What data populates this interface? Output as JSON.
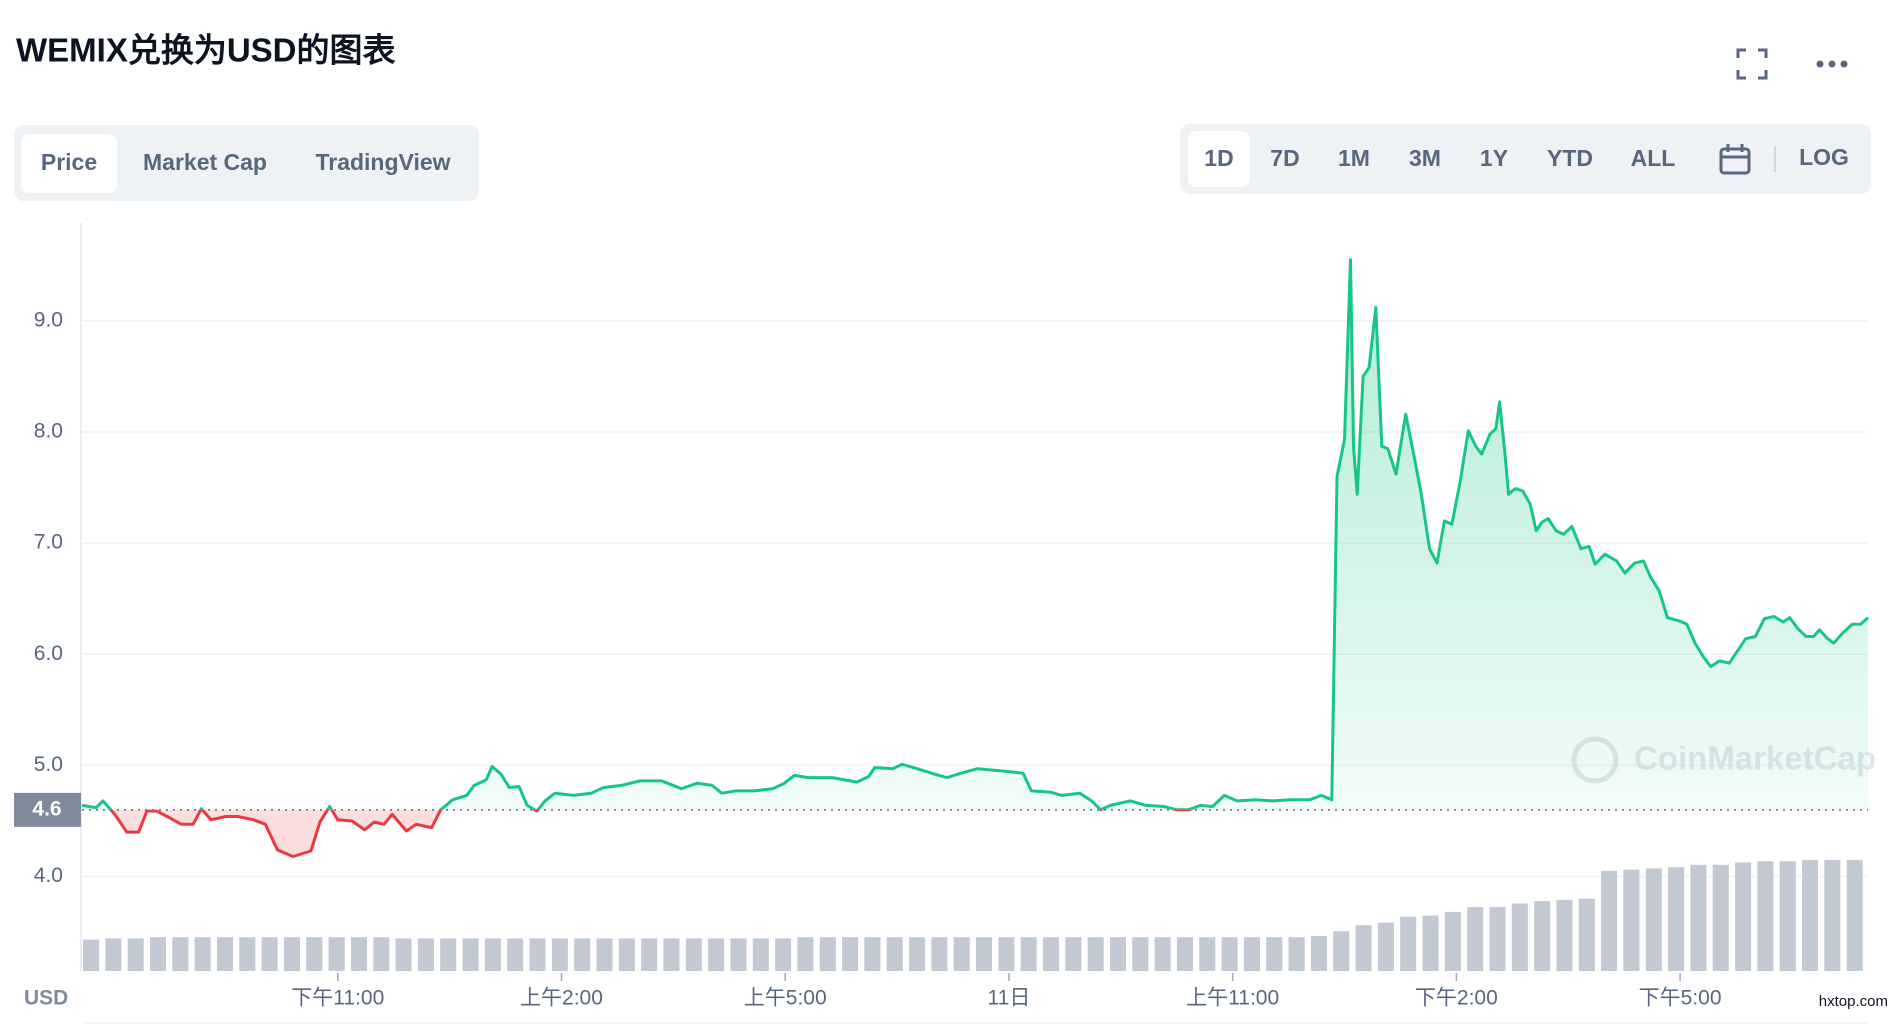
{
  "header": {
    "title": "WEMIX兑换为USD的图表"
  },
  "tabs": {
    "items": [
      "Price",
      "Market Cap",
      "TradingView"
    ],
    "active": 0
  },
  "ranges": {
    "items": [
      "1D",
      "7D",
      "1M",
      "3M",
      "1Y",
      "YTD",
      "ALL"
    ],
    "active": 0,
    "log": "LOG"
  },
  "chart_data": {
    "type": "line",
    "y_unit": "USD",
    "color_up": "#16c784",
    "color_down": "#ea3943",
    "reference": 4.6,
    "watermark": "CoinMarketCap",
    "xlim": [
      19.57,
      43.52
    ],
    "xticks": [
      {
        "value": 23,
        "label": "下午11:00"
      },
      {
        "value": 26,
        "label": "上午2:00"
      },
      {
        "value": 29,
        "label": "上午5:00"
      },
      {
        "value": 32,
        "label": "11日"
      },
      {
        "value": 35,
        "label": "上午11:00"
      },
      {
        "value": 38,
        "label": "下午2:00"
      },
      {
        "value": 41,
        "label": "下午5:00"
      }
    ],
    "ylim": [
      3.15,
      9.88
    ],
    "yticks": [
      {
        "value": 4,
        "label": "4.0"
      },
      {
        "value": 5,
        "label": "5.0"
      },
      {
        "value": 6,
        "label": "6.0"
      },
      {
        "value": 7,
        "label": "7.0"
      },
      {
        "value": 8,
        "label": "8.0"
      },
      {
        "value": 9,
        "label": "9.0"
      }
    ],
    "grid": true,
    "x": [
      19.57,
      19.76,
      19.85,
      20.01,
      20.17,
      20.33,
      20.44,
      20.57,
      20.74,
      20.9,
      21.06,
      21.17,
      21.3,
      21.5,
      21.66,
      21.87,
      22.03,
      22.19,
      22.4,
      22.64,
      22.76,
      22.89,
      23.0,
      23.19,
      23.36,
      23.49,
      23.62,
      23.73,
      23.92,
      24.05,
      24.26,
      24.38,
      24.54,
      24.73,
      24.83,
      24.99,
      25.07,
      25.19,
      25.3,
      25.43,
      25.54,
      25.67,
      25.78,
      25.91,
      26.16,
      26.4,
      26.56,
      26.8,
      27.05,
      27.34,
      27.61,
      27.82,
      28.02,
      28.15,
      28.34,
      28.58,
      28.83,
      28.99,
      29.12,
      29.31,
      29.63,
      29.96,
      30.12,
      30.2,
      30.44,
      30.57,
      30.77,
      31.01,
      31.17,
      31.41,
      31.58,
      31.9,
      32.19,
      32.3,
      32.55,
      32.71,
      32.95,
      33.11,
      33.23,
      33.36,
      33.63,
      33.84,
      34.08,
      34.25,
      34.41,
      34.57,
      34.73,
      34.89,
      35.06,
      35.3,
      35.54,
      35.78,
      36.03,
      36.19,
      36.33,
      36.4,
      36.5,
      36.58,
      36.62,
      36.67,
      36.75,
      36.83,
      36.92,
      37.0,
      37.08,
      37.19,
      37.32,
      37.43,
      37.53,
      37.64,
      37.74,
      37.84,
      37.94,
      38.05,
      38.16,
      38.26,
      38.34,
      38.45,
      38.53,
      38.58,
      38.65,
      38.7,
      38.79,
      38.89,
      38.99,
      39.07,
      39.15,
      39.23,
      39.34,
      39.44,
      39.55,
      39.67,
      39.78,
      39.86,
      39.99,
      40.15,
      40.26,
      40.39,
      40.51,
      40.6,
      40.72,
      40.83,
      40.99,
      41.09,
      41.2,
      41.32,
      41.41,
      41.53,
      41.66,
      41.77,
      41.88,
      42.01,
      42.13,
      42.26,
      42.38,
      42.47,
      42.58,
      42.69,
      42.79,
      42.87,
      42.98,
      43.06,
      43.18,
      43.31,
      43.42,
      43.52
    ],
    "values": [
      4.64,
      4.62,
      4.68,
      4.56,
      4.4,
      4.4,
      4.59,
      4.59,
      4.53,
      4.47,
      4.47,
      4.61,
      4.51,
      4.54,
      4.54,
      4.51,
      4.47,
      4.24,
      4.18,
      4.23,
      4.49,
      4.63,
      4.51,
      4.5,
      4.42,
      4.49,
      4.47,
      4.56,
      4.41,
      4.47,
      4.44,
      4.6,
      4.69,
      4.73,
      4.82,
      4.87,
      4.99,
      4.92,
      4.8,
      4.81,
      4.64,
      4.59,
      4.68,
      4.75,
      4.73,
      4.75,
      4.8,
      4.82,
      4.86,
      4.86,
      4.79,
      4.84,
      4.82,
      4.75,
      4.77,
      4.77,
      4.79,
      4.84,
      4.91,
      4.89,
      4.89,
      4.85,
      4.9,
      4.98,
      4.97,
      5.01,
      4.97,
      4.92,
      4.89,
      4.94,
      4.97,
      4.95,
      4.93,
      4.77,
      4.76,
      4.73,
      4.75,
      4.68,
      4.6,
      4.64,
      4.68,
      4.64,
      4.63,
      4.6,
      4.6,
      4.64,
      4.63,
      4.73,
      4.68,
      4.69,
      4.68,
      4.69,
      4.69,
      4.73,
      4.69,
      7.6,
      7.93,
      9.55,
      7.87,
      7.44,
      8.5,
      8.58,
      9.12,
      7.87,
      7.85,
      7.62,
      8.16,
      7.79,
      7.44,
      6.95,
      6.82,
      7.2,
      7.17,
      7.55,
      8.01,
      7.87,
      7.8,
      7.98,
      8.03,
      8.27,
      7.82,
      7.44,
      7.49,
      7.47,
      7.35,
      7.11,
      7.19,
      7.22,
      7.11,
      7.08,
      7.15,
      6.95,
      6.97,
      6.81,
      6.9,
      6.84,
      6.73,
      6.82,
      6.84,
      6.7,
      6.57,
      6.33,
      6.3,
      6.27,
      6.1,
      5.97,
      5.89,
      5.94,
      5.92,
      6.03,
      6.14,
      6.16,
      6.32,
      6.34,
      6.29,
      6.33,
      6.23,
      6.16,
      6.16,
      6.22,
      6.14,
      6.1,
      6.19,
      6.27,
      6.27,
      6.33
    ],
    "volume": {
      "color": "#c3c9d3",
      "ylim": [
        0,
        62
      ],
      "values": [
        2.6,
        2.7,
        2.7,
        2.8,
        2.8,
        2.8,
        2.8,
        2.8,
        2.8,
        2.8,
        2.8,
        2.8,
        2.8,
        2.8,
        2.7,
        2.7,
        2.7,
        2.7,
        2.7,
        2.7,
        2.7,
        2.7,
        2.7,
        2.7,
        2.7,
        2.7,
        2.7,
        2.7,
        2.7,
        2.7,
        2.7,
        2.7,
        2.8,
        2.8,
        2.8,
        2.8,
        2.8,
        2.8,
        2.8,
        2.8,
        2.8,
        2.8,
        2.8,
        2.8,
        2.8,
        2.8,
        2.8,
        2.8,
        2.8,
        2.8,
        2.8,
        2.8,
        2.8,
        2.8,
        2.8,
        2.9,
        3.3,
        3.8,
        4.0,
        4.5,
        4.6,
        4.9,
        5.3,
        5.3,
        5.6,
        5.8,
        5.9,
        6.0,
        8.3,
        8.4,
        8.5,
        8.6,
        8.8,
        8.8,
        9.0,
        9.1,
        9.1,
        9.2,
        9.2,
        9.2
      ]
    }
  },
  "footer_watermark": "hxtop.com"
}
